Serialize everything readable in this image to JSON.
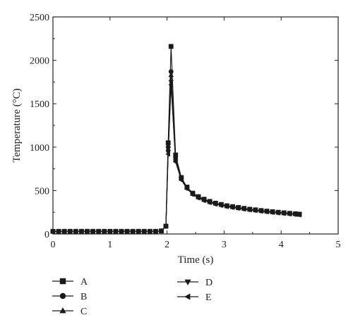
{
  "chart_data": {
    "type": "line",
    "xlabel": "Time (s)",
    "ylabel": "Temperature (°C)",
    "xlim": [
      0,
      5
    ],
    "ylim": [
      0,
      2500
    ],
    "x_ticks": [
      0,
      1,
      2,
      3,
      4,
      5
    ],
    "y_ticks": [
      0,
      500,
      1000,
      1500,
      2000,
      2500
    ],
    "x_tick_labels": [
      "0",
      "1",
      "2",
      "3",
      "4",
      "5"
    ],
    "y_tick_labels": [
      "0",
      "500",
      "1000",
      "1500",
      "2000",
      "2500"
    ],
    "grid": false,
    "legend_placement": "bottom",
    "series": [
      {
        "name": "A",
        "marker": "square",
        "color": "#1a1a1a",
        "x": [
          0,
          0.1,
          0.2,
          0.3,
          0.4,
          0.5,
          0.6,
          0.7,
          0.8,
          0.9,
          1.0,
          1.1,
          1.2,
          1.3,
          1.4,
          1.5,
          1.6,
          1.7,
          1.8,
          1.9,
          1.98,
          2.02,
          2.07,
          2.15,
          2.25,
          2.35,
          2.45,
          2.55,
          2.65,
          2.75,
          2.85,
          2.95,
          3.05,
          3.15,
          3.25,
          3.35,
          3.45,
          3.55,
          3.65,
          3.75,
          3.85,
          3.95,
          4.05,
          4.15,
          4.25,
          4.32
        ],
        "y": [
          30,
          30,
          30,
          30,
          30,
          30,
          30,
          30,
          30,
          30,
          30,
          30,
          30,
          30,
          30,
          30,
          30,
          30,
          30,
          35,
          90,
          1050,
          2160,
          910,
          650,
          540,
          470,
          430,
          400,
          375,
          355,
          340,
          325,
          315,
          305,
          295,
          285,
          278,
          270,
          263,
          256,
          250,
          244,
          238,
          233,
          228
        ]
      },
      {
        "name": "B",
        "marker": "circle",
        "color": "#1a1a1a",
        "x": [
          0,
          0.1,
          0.2,
          0.3,
          0.4,
          0.5,
          0.6,
          0.7,
          0.8,
          0.9,
          1.0,
          1.1,
          1.2,
          1.3,
          1.4,
          1.5,
          1.6,
          1.7,
          1.8,
          1.9,
          1.98,
          2.02,
          2.07,
          2.15,
          2.25,
          2.35,
          2.45,
          2.55,
          2.65,
          2.75,
          2.85,
          2.95,
          3.05,
          3.15,
          3.25,
          3.35,
          3.45,
          3.55,
          3.65,
          3.75,
          3.85,
          3.95,
          4.05,
          4.15,
          4.25,
          4.32
        ],
        "y": [
          30,
          30,
          30,
          30,
          30,
          30,
          30,
          30,
          30,
          30,
          30,
          30,
          30,
          30,
          30,
          30,
          30,
          30,
          30,
          35,
          90,
          1000,
          1870,
          880,
          640,
          535,
          465,
          425,
          395,
          370,
          352,
          337,
          322,
          312,
          302,
          292,
          283,
          276,
          268,
          261,
          254,
          248,
          242,
          236,
          231,
          226
        ]
      },
      {
        "name": "C",
        "marker": "triangle-up",
        "color": "#1a1a1a",
        "x": [
          0,
          0.1,
          0.2,
          0.3,
          0.4,
          0.5,
          0.6,
          0.7,
          0.8,
          0.9,
          1.0,
          1.1,
          1.2,
          1.3,
          1.4,
          1.5,
          1.6,
          1.7,
          1.8,
          1.9,
          1.98,
          2.02,
          2.07,
          2.15,
          2.25,
          2.35,
          2.45,
          2.55,
          2.65,
          2.75,
          2.85,
          2.95,
          3.05,
          3.15,
          3.25,
          3.35,
          3.45,
          3.55,
          3.65,
          3.75,
          3.85,
          3.95,
          4.05,
          4.15,
          4.25,
          4.32
        ],
        "y": [
          30,
          30,
          30,
          30,
          30,
          30,
          30,
          30,
          30,
          30,
          30,
          30,
          30,
          30,
          30,
          30,
          30,
          30,
          30,
          35,
          90,
          980,
          1830,
          860,
          635,
          530,
          462,
          422,
          392,
          368,
          350,
          335,
          320,
          310,
          300,
          290,
          281,
          274,
          266,
          259,
          252,
          246,
          240,
          234,
          229,
          224
        ]
      },
      {
        "name": "D",
        "marker": "triangle-down",
        "color": "#1a1a1a",
        "x": [
          0,
          0.1,
          0.2,
          0.3,
          0.4,
          0.5,
          0.6,
          0.7,
          0.8,
          0.9,
          1.0,
          1.1,
          1.2,
          1.3,
          1.4,
          1.5,
          1.6,
          1.7,
          1.8,
          1.9,
          1.98,
          2.02,
          2.07,
          2.15,
          2.25,
          2.35,
          2.45,
          2.55,
          2.65,
          2.75,
          2.85,
          2.95,
          3.05,
          3.15,
          3.25,
          3.35,
          3.45,
          3.55,
          3.65,
          3.75,
          3.85,
          3.95,
          4.05,
          4.15,
          4.25,
          4.32
        ],
        "y": [
          30,
          30,
          30,
          30,
          30,
          30,
          30,
          30,
          30,
          30,
          30,
          30,
          30,
          30,
          30,
          30,
          30,
          30,
          30,
          35,
          90,
          940,
          1750,
          840,
          628,
          526,
          458,
          418,
          388,
          365,
          347,
          332,
          318,
          308,
          298,
          288,
          279,
          272,
          264,
          257,
          250,
          244,
          238,
          232,
          227,
          222
        ]
      },
      {
        "name": "E",
        "marker": "triangle-left",
        "color": "#1a1a1a",
        "x": [
          0,
          0.1,
          0.2,
          0.3,
          0.4,
          0.5,
          0.6,
          0.7,
          0.8,
          0.9,
          1.0,
          1.1,
          1.2,
          1.3,
          1.4,
          1.5,
          1.6,
          1.7,
          1.8,
          1.9,
          1.98,
          2.02,
          2.07,
          2.15,
          2.25,
          2.35,
          2.45,
          2.55,
          2.65,
          2.75,
          2.85,
          2.95,
          3.05,
          3.15,
          3.25,
          3.35,
          3.45,
          3.55,
          3.65,
          3.75,
          3.85,
          3.95,
          4.05,
          4.15,
          4.25,
          4.32
        ],
        "y": [
          30,
          30,
          30,
          30,
          30,
          30,
          30,
          30,
          30,
          30,
          30,
          30,
          30,
          30,
          30,
          30,
          30,
          30,
          30,
          35,
          90,
          920,
          1720,
          830,
          622,
          522,
          455,
          415,
          385,
          362,
          344,
          330,
          316,
          306,
          296,
          286,
          277,
          270,
          262,
          255,
          248,
          242,
          236,
          230,
          225,
          220
        ]
      }
    ]
  }
}
